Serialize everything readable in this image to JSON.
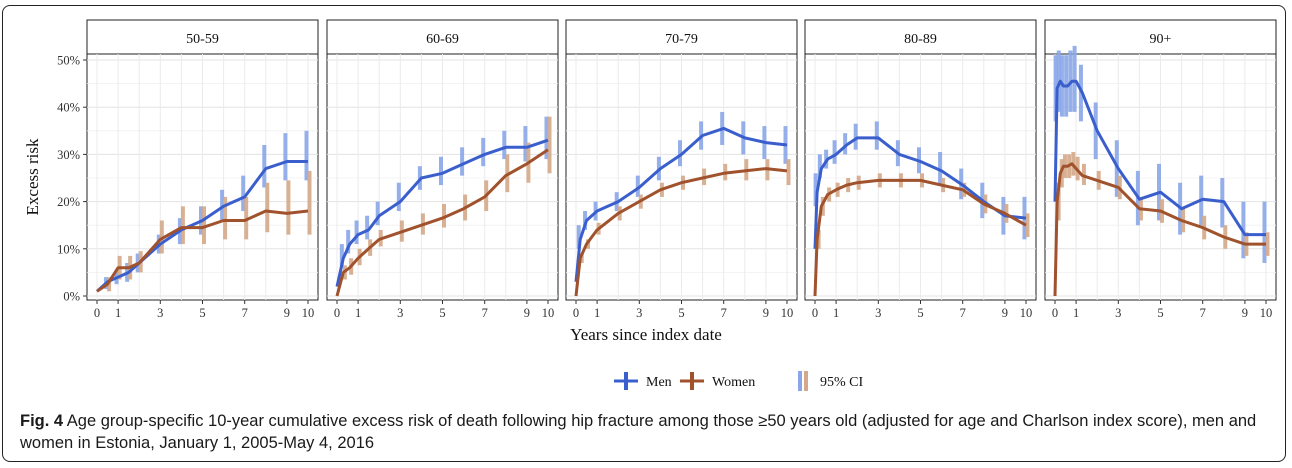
{
  "figure": {
    "label": "Fig. 4",
    "caption": "Age group-specific 10-year cumulative excess risk of death following hip fracture among those ≥50 years old (adjusted for age and Charlson index score), men and women in Estonia, January 1, 2005-May 4, 2016"
  },
  "colors": {
    "men": "#3a5fcd",
    "women": "#a0522d",
    "men_ci": "#8aa6e8",
    "women_ci": "#d4a88a"
  },
  "chart_data": {
    "type": "line",
    "xlabel": "Years since index date",
    "ylabel": "Excess risk",
    "xlim": [
      0,
      10
    ],
    "ylim": [
      0,
      0.5
    ],
    "x_ticks": [
      0,
      1,
      3,
      5,
      7,
      9,
      10
    ],
    "y_ticks": [
      "0%",
      "10%",
      "20%",
      "30%",
      "40%",
      "50%"
    ],
    "grid": true,
    "legend_position": "bottom",
    "legend": [
      "Men",
      "Women",
      "95% CI"
    ],
    "panels": [
      {
        "title": "50-59",
        "series": [
          {
            "name": "Men",
            "x": [
              0,
              0.5,
              1,
              1.5,
              2,
              3,
              4,
              5,
              6,
              7,
              8,
              9,
              10
            ],
            "y": [
              0.01,
              0.03,
              0.04,
              0.05,
              0.07,
              0.11,
              0.14,
              0.16,
              0.19,
              0.21,
              0.27,
              0.285,
              0.285
            ],
            "ci_low": [
              0.0,
              0.015,
              0.025,
              0.03,
              0.05,
              0.09,
              0.11,
              0.13,
              0.16,
              0.18,
              0.23,
              0.245,
              0.245
            ],
            "ci_high": [
              0.02,
              0.04,
              0.055,
              0.07,
              0.09,
              0.13,
              0.165,
              0.19,
              0.225,
              0.255,
              0.32,
              0.345,
              0.35
            ]
          },
          {
            "name": "Women",
            "x": [
              0,
              0.5,
              1,
              1.5,
              2,
              3,
              4,
              5,
              6,
              7,
              8,
              9,
              10
            ],
            "y": [
              0.01,
              0.025,
              0.06,
              0.06,
              0.07,
              0.12,
              0.145,
              0.145,
              0.16,
              0.16,
              0.18,
              0.175,
              0.18
            ],
            "ci_low": [
              0.0,
              0.01,
              0.035,
              0.035,
              0.05,
              0.09,
              0.11,
              0.11,
              0.12,
              0.12,
              0.135,
              0.13,
              0.13
            ],
            "ci_high": [
              0.02,
              0.04,
              0.085,
              0.085,
              0.095,
              0.16,
              0.19,
              0.19,
              0.21,
              0.21,
              0.24,
              0.245,
              0.265
            ]
          }
        ]
      },
      {
        "title": "60-69",
        "series": [
          {
            "name": "Men",
            "x": [
              0,
              0.3,
              0.6,
              1,
              1.5,
              2,
              3,
              4,
              5,
              6,
              7,
              8,
              9,
              10
            ],
            "y": [
              0.02,
              0.08,
              0.11,
              0.13,
              0.14,
              0.17,
              0.2,
              0.25,
              0.26,
              0.28,
              0.3,
              0.315,
              0.315,
              0.33
            ],
            "ci_low": [
              0.0,
              0.06,
              0.09,
              0.11,
              0.12,
              0.15,
              0.18,
              0.225,
              0.235,
              0.255,
              0.275,
              0.29,
              0.285,
              0.29
            ],
            "ci_high": [
              0.05,
              0.11,
              0.14,
              0.16,
              0.17,
              0.2,
              0.24,
              0.275,
              0.295,
              0.315,
              0.335,
              0.35,
              0.36,
              0.38
            ]
          },
          {
            "name": "Women",
            "x": [
              0,
              0.3,
              0.6,
              1,
              1.5,
              2,
              3,
              4,
              5,
              6,
              7,
              8,
              9,
              10
            ],
            "y": [
              0.0,
              0.05,
              0.06,
              0.08,
              0.1,
              0.12,
              0.135,
              0.15,
              0.165,
              0.185,
              0.21,
              0.255,
              0.28,
              0.31
            ],
            "ci_low": [
              0.0,
              0.035,
              0.045,
              0.065,
              0.085,
              0.105,
              0.115,
              0.13,
              0.145,
              0.16,
              0.18,
              0.22,
              0.24,
              0.26
            ],
            "ci_high": [
              0.02,
              0.065,
              0.08,
              0.1,
              0.12,
              0.14,
              0.16,
              0.175,
              0.195,
              0.215,
              0.245,
              0.3,
              0.325,
              0.38
            ]
          }
        ]
      },
      {
        "title": "70-79",
        "series": [
          {
            "name": "Men",
            "x": [
              0,
              0.2,
              0.5,
              1,
              2,
              3,
              4,
              5,
              6,
              7,
              8,
              9,
              10
            ],
            "y": [
              0.03,
              0.12,
              0.16,
              0.18,
              0.2,
              0.23,
              0.27,
              0.3,
              0.34,
              0.355,
              0.335,
              0.325,
              0.32
            ],
            "ci_low": [
              0.0,
              0.1,
              0.14,
              0.16,
              0.18,
              0.21,
              0.245,
              0.275,
              0.31,
              0.32,
              0.3,
              0.29,
              0.28
            ],
            "ci_high": [
              0.06,
              0.15,
              0.18,
              0.2,
              0.22,
              0.255,
              0.295,
              0.33,
              0.37,
              0.39,
              0.37,
              0.36,
              0.36
            ]
          },
          {
            "name": "Women",
            "x": [
              0,
              0.2,
              0.5,
              1,
              2,
              3,
              4,
              5,
              6,
              7,
              8,
              9,
              10
            ],
            "y": [
              0.0,
              0.08,
              0.11,
              0.14,
              0.175,
              0.2,
              0.225,
              0.24,
              0.25,
              0.26,
              0.265,
              0.27,
              0.265
            ],
            "ci_low": [
              0.0,
              0.07,
              0.1,
              0.13,
              0.16,
              0.185,
              0.21,
              0.225,
              0.235,
              0.245,
              0.245,
              0.245,
              0.235
            ],
            "ci_high": [
              0.01,
              0.09,
              0.12,
              0.155,
              0.19,
              0.215,
              0.24,
              0.255,
              0.27,
              0.28,
              0.29,
              0.29,
              0.29
            ]
          }
        ]
      },
      {
        "title": "80-89",
        "series": [
          {
            "name": "Men",
            "x": [
              0,
              0.1,
              0.3,
              0.6,
              1,
              1.5,
              2,
              3,
              4,
              5,
              6,
              7,
              8,
              9,
              10
            ],
            "y": [
              0.1,
              0.22,
              0.27,
              0.29,
              0.3,
              0.32,
              0.335,
              0.335,
              0.3,
              0.285,
              0.265,
              0.235,
              0.2,
              0.17,
              0.165
            ],
            "ci_low": [
              0.06,
              0.19,
              0.25,
              0.27,
              0.28,
              0.3,
              0.31,
              0.31,
              0.275,
              0.26,
              0.235,
              0.205,
              0.165,
              0.13,
              0.12
            ],
            "ci_high": [
              0.14,
              0.26,
              0.3,
              0.31,
              0.33,
              0.345,
              0.365,
              0.37,
              0.33,
              0.315,
              0.305,
              0.27,
              0.24,
              0.21,
              0.21
            ]
          },
          {
            "name": "Women",
            "x": [
              0,
              0.1,
              0.3,
              0.6,
              1,
              1.5,
              2,
              3,
              4,
              5,
              6,
              7,
              8,
              9,
              10
            ],
            "y": [
              0.0,
              0.12,
              0.19,
              0.215,
              0.225,
              0.235,
              0.24,
              0.245,
              0.245,
              0.245,
              0.235,
              0.225,
              0.195,
              0.175,
              0.15
            ],
            "ci_low": [
              0.0,
              0.1,
              0.17,
              0.2,
              0.21,
              0.22,
              0.225,
              0.23,
              0.23,
              0.23,
              0.22,
              0.21,
              0.175,
              0.155,
              0.125
            ],
            "ci_high": [
              0.02,
              0.14,
              0.21,
              0.23,
              0.24,
              0.25,
              0.255,
              0.26,
              0.26,
              0.26,
              0.25,
              0.24,
              0.215,
              0.195,
              0.175
            ]
          }
        ]
      },
      {
        "title": "90+",
        "series": [
          {
            "name": "Men",
            "x": [
              0,
              0.1,
              0.25,
              0.4,
              0.6,
              0.8,
              1,
              1.3,
              2,
              3,
              4,
              5,
              6,
              7,
              8,
              9,
              10
            ],
            "y": [
              0.2,
              0.44,
              0.455,
              0.445,
              0.445,
              0.455,
              0.455,
              0.43,
              0.35,
              0.27,
              0.205,
              0.22,
              0.185,
              0.205,
              0.2,
              0.13,
              0.13
            ],
            "ci_low": [
              0.12,
              0.37,
              0.39,
              0.38,
              0.38,
              0.39,
              0.39,
              0.37,
              0.29,
              0.21,
              0.15,
              0.16,
              0.13,
              0.15,
              0.145,
              0.08,
              0.07
            ],
            "ci_high": [
              0.3,
              0.51,
              0.52,
              0.51,
              0.51,
              0.52,
              0.53,
              0.49,
              0.41,
              0.33,
              0.265,
              0.28,
              0.24,
              0.255,
              0.25,
              0.2,
              0.2
            ]
          },
          {
            "name": "Women",
            "x": [
              0,
              0.1,
              0.25,
              0.4,
              0.6,
              0.8,
              1,
              1.3,
              2,
              3,
              4,
              5,
              6,
              7,
              8,
              9,
              10
            ],
            "y": [
              0.0,
              0.2,
              0.26,
              0.275,
              0.275,
              0.28,
              0.27,
              0.255,
              0.245,
              0.23,
              0.185,
              0.18,
              0.16,
              0.145,
              0.125,
              0.11,
              0.11
            ],
            "ci_low": [
              0.0,
              0.16,
              0.23,
              0.25,
              0.25,
              0.255,
              0.245,
              0.235,
              0.225,
              0.205,
              0.16,
              0.155,
              0.135,
              0.12,
              0.1,
              0.085,
              0.085
            ],
            "ci_high": [
              0.05,
              0.24,
              0.29,
              0.3,
              0.3,
              0.305,
              0.295,
              0.28,
              0.265,
              0.255,
              0.21,
              0.205,
              0.185,
              0.17,
              0.15,
              0.135,
              0.135
            ]
          }
        ]
      }
    ]
  }
}
